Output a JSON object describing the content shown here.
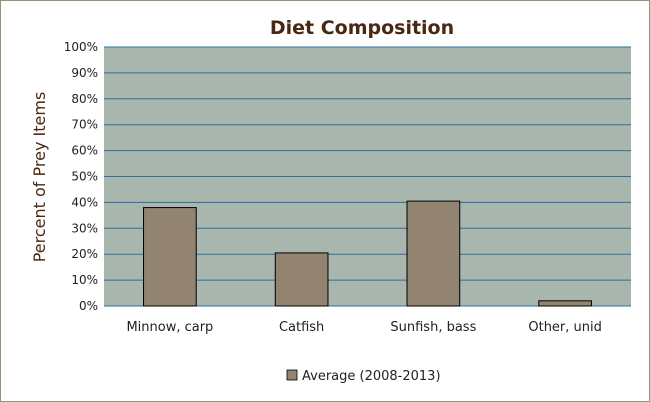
{
  "chart_data": {
    "type": "bar",
    "title": "Diet Composition",
    "xlabel": "",
    "ylabel": "Percent of Prey Items",
    "categories": [
      "Minnow, carp",
      "Catfish",
      "Sunfish, bass",
      "Other, unid"
    ],
    "series": [
      {
        "name": "Average (2008-2013)",
        "values": [
          38,
          20.5,
          40.5,
          2
        ]
      }
    ],
    "ylim": [
      0,
      100
    ],
    "yticks": [
      0,
      10,
      20,
      30,
      40,
      50,
      60,
      70,
      80,
      90,
      100
    ],
    "ytick_labels": [
      "0%",
      "10%",
      "20%",
      "30%",
      "40%",
      "50%",
      "60%",
      "70%",
      "80%",
      "90%",
      "100%"
    ],
    "grid": true,
    "legend_position": "bottom",
    "colors": {
      "bar": "#928471",
      "plot_background": "#a8b6ae",
      "gridline": "#2e6e9c",
      "title": "#4a2712"
    }
  }
}
